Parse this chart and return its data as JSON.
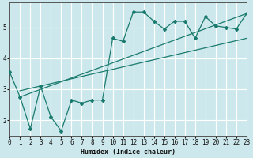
{
  "xlabel": "Humidex (Indice chaleur)",
  "bg_color": "#cde8ec",
  "grid_color": "#ffffff",
  "line_color": "#1a7a6e",
  "series1_x": [
    0,
    1,
    2,
    3,
    4,
    5,
    6,
    7,
    8,
    9,
    10,
    11,
    12,
    13,
    14,
    15,
    16,
    17,
    18,
    19,
    20,
    21,
    22,
    23
  ],
  "series1_y": [
    3.55,
    2.75,
    1.72,
    3.1,
    2.1,
    1.65,
    2.65,
    2.55,
    2.65,
    2.65,
    4.65,
    4.55,
    5.5,
    5.5,
    5.2,
    4.95,
    5.2,
    5.2,
    4.65,
    5.35,
    5.05,
    5.0,
    4.95,
    5.45
  ],
  "line1_x": [
    1,
    23
  ],
  "line1_y": [
    2.75,
    5.45
  ],
  "line2_x": [
    1,
    23
  ],
  "line2_y": [
    2.95,
    4.65
  ],
  "ylim": [
    1.5,
    5.8
  ],
  "xlim": [
    0,
    23
  ],
  "yticks": [
    2,
    3,
    4,
    5
  ],
  "xticks": [
    0,
    1,
    2,
    3,
    4,
    5,
    6,
    7,
    8,
    9,
    10,
    11,
    12,
    13,
    14,
    15,
    16,
    17,
    18,
    19,
    20,
    21,
    22,
    23
  ],
  "xticklabels": [
    "0",
    "1",
    "2",
    "3",
    "4",
    "5",
    "6",
    "7",
    "8",
    "9",
    "10",
    "11",
    "12",
    "13",
    "14",
    "15",
    "16",
    "17",
    "18",
    "19",
    "20",
    "21",
    "22",
    "23"
  ]
}
